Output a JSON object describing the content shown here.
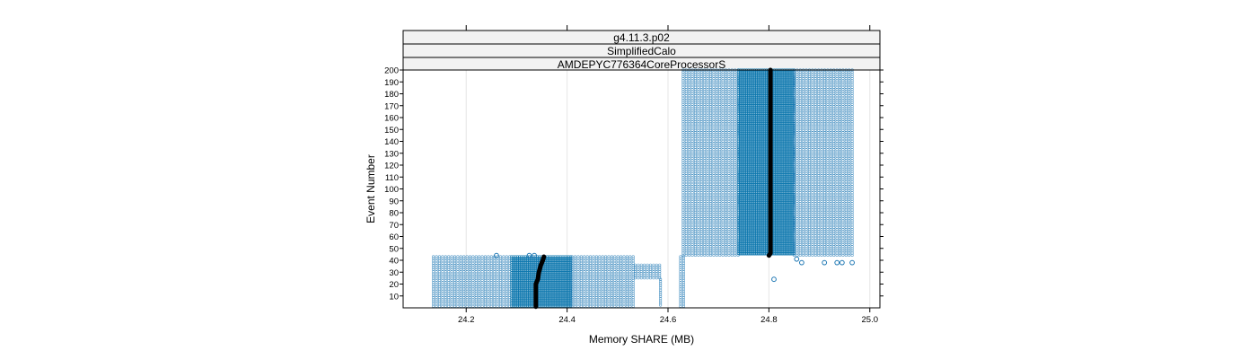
{
  "chart_data": {
    "type": "scatter",
    "strips": [
      "g4.11.3.p02",
      "SimplifiedCalo",
      "AMDEPYC776364CoreProcessorS"
    ],
    "xlabel": "Memory SHARE (MB)",
    "ylabel": "Event Number",
    "xlim": [
      24.075,
      25.02
    ],
    "ylim": [
      0,
      200
    ],
    "x_ticks": [
      24.2,
      24.4,
      24.6,
      24.8,
      25.0
    ],
    "x_tick_labels": [
      "24.2",
      "24.4",
      "24.6",
      "24.8",
      "25.0"
    ],
    "y_ticks": [
      10,
      20,
      30,
      40,
      50,
      60,
      70,
      80,
      90,
      100,
      110,
      120,
      130,
      140,
      150,
      160,
      170,
      180,
      190,
      200
    ],
    "y_tick_labels": [
      "10",
      "20",
      "30",
      "40",
      "50",
      "60",
      "70",
      "80",
      "90",
      "100",
      "110",
      "120",
      "130",
      "140",
      "150",
      "160",
      "170",
      "180",
      "190",
      "200"
    ],
    "grid": true,
    "colors": {
      "points": "#1f78b4",
      "dense": "#0a75ad",
      "median": "#000000"
    },
    "point_bands": [
      {
        "x_min": 24.135,
        "x_max": 24.29,
        "y_min": 1,
        "y_max": 43,
        "density": "light"
      },
      {
        "x_min": 24.29,
        "x_max": 24.41,
        "y_min": 1,
        "y_max": 43,
        "density": "dense"
      },
      {
        "x_min": 24.41,
        "x_max": 24.535,
        "y_min": 1,
        "y_max": 43,
        "density": "light"
      },
      {
        "x_min": 24.535,
        "x_max": 24.585,
        "y_min": 24,
        "y_max": 36,
        "density": "light"
      },
      {
        "x_min": 24.585,
        "x_max": 24.59,
        "y_min": 1,
        "y_max": 24,
        "density": "light"
      },
      {
        "x_min": 24.625,
        "x_max": 24.635,
        "y_min": 1,
        "y_max": 43,
        "density": "light"
      },
      {
        "x_min": 24.63,
        "x_max": 24.74,
        "y_min": 44,
        "y_max": 200,
        "density": "light"
      },
      {
        "x_min": 24.74,
        "x_max": 24.85,
        "y_min": 44,
        "y_max": 200,
        "density": "dense"
      },
      {
        "x_min": 24.85,
        "x_max": 24.965,
        "y_min": 44,
        "y_max": 200,
        "density": "light"
      }
    ],
    "outliers": [
      {
        "x": 24.26,
        "y": 44
      },
      {
        "x": 24.325,
        "y": 44
      },
      {
        "x": 24.335,
        "y": 44
      },
      {
        "x": 24.81,
        "y": 24
      },
      {
        "x": 24.855,
        "y": 41
      },
      {
        "x": 24.865,
        "y": 38
      },
      {
        "x": 24.91,
        "y": 38
      },
      {
        "x": 24.935,
        "y": 38
      },
      {
        "x": 24.945,
        "y": 38
      },
      {
        "x": 24.965,
        "y": 38
      }
    ],
    "median_line": [
      {
        "x": 24.338,
        "y": 1
      },
      {
        "x": 24.338,
        "y": 20
      },
      {
        "x": 24.342,
        "y": 24
      },
      {
        "x": 24.344,
        "y": 30
      },
      {
        "x": 24.348,
        "y": 36
      },
      {
        "x": 24.352,
        "y": 40
      },
      {
        "x": 24.354,
        "y": 43
      },
      {
        "x": 24.8,
        "y": 44
      },
      {
        "x": 24.803,
        "y": 46
      },
      {
        "x": 24.803,
        "y": 200
      }
    ]
  }
}
